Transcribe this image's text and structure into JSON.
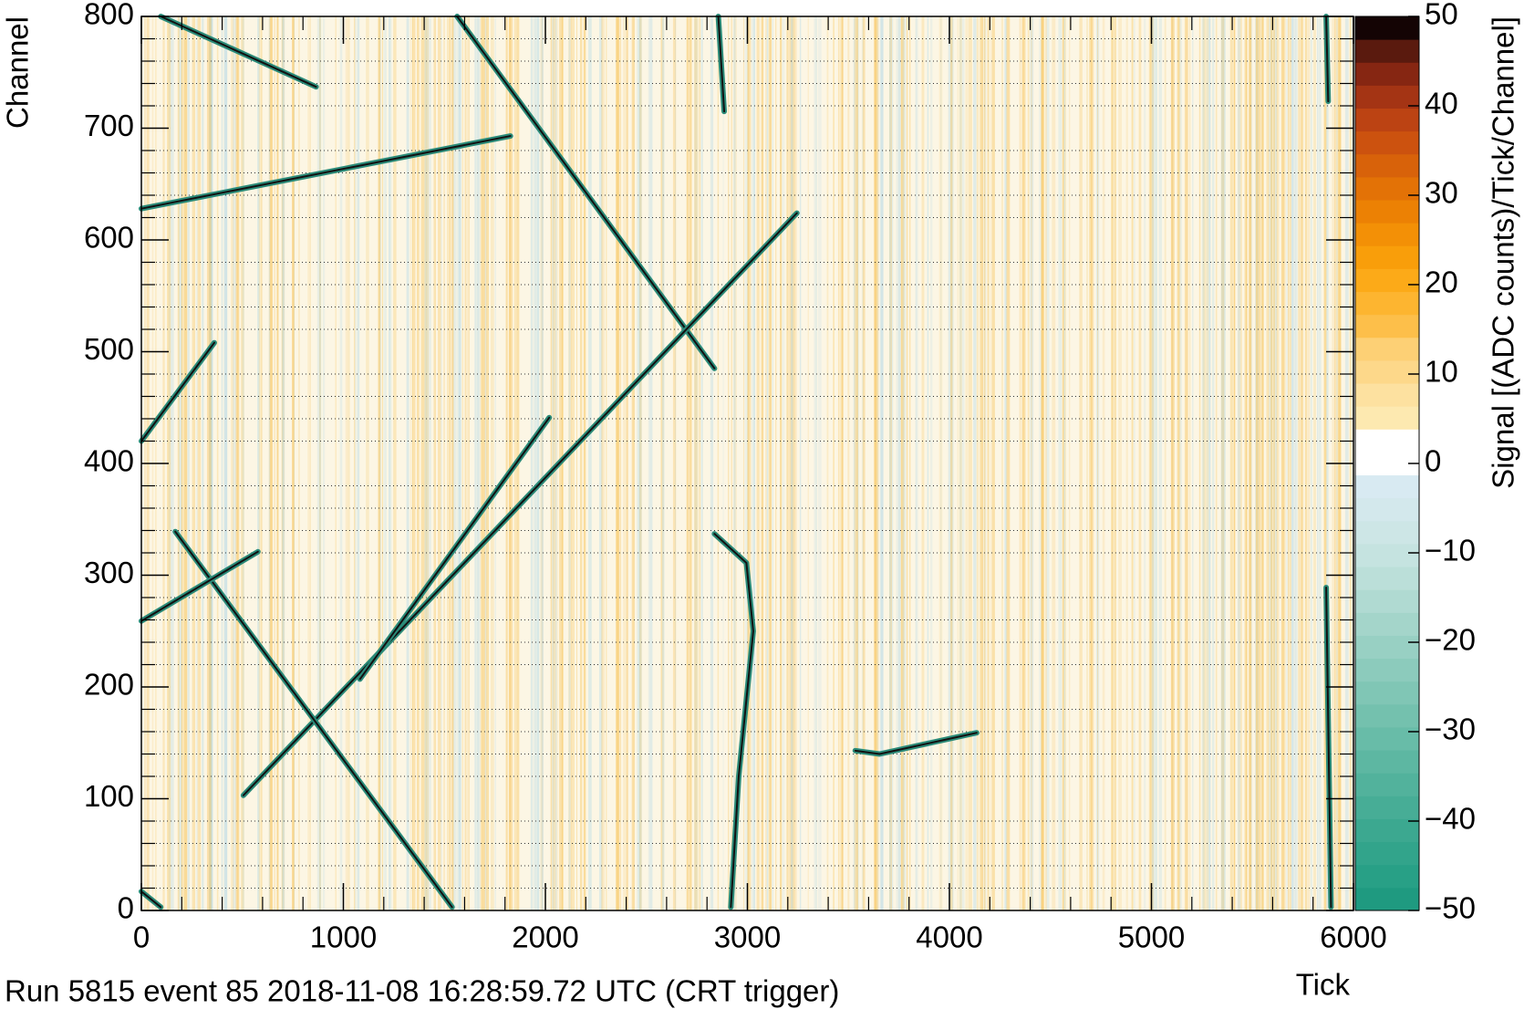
{
  "chart_data": {
    "type": "heatmap",
    "xlabel": "Tick",
    "ylabel": "Channel",
    "zlabel": "Signal [(ADC counts)/Tick/Channel]",
    "footer": "Run 5815 event 85 2018-11-08 16:28:59.72 UTC (CRT trigger)",
    "xlim": [
      0,
      6000
    ],
    "ylim": [
      0,
      800
    ],
    "zlim": [
      -50,
      50
    ],
    "xticks": [
      0,
      1000,
      2000,
      3000,
      4000,
      5000,
      6000
    ],
    "yticks": [
      0,
      100,
      200,
      300,
      400,
      500,
      600,
      700,
      800
    ],
    "yminorticks": [
      20,
      40,
      60,
      80,
      120,
      140,
      160,
      180,
      220,
      240,
      260,
      280,
      320,
      340,
      360,
      380,
      420,
      440,
      460,
      480,
      520,
      540,
      560,
      580,
      620,
      640,
      660,
      680,
      720,
      740,
      760,
      780
    ],
    "xminorticks": [
      200,
      400,
      600,
      800,
      1200,
      1400,
      1600,
      1800,
      2200,
      2400,
      2600,
      2800,
      3200,
      3400,
      3600,
      3800,
      4200,
      4400,
      4600,
      4800,
      5200,
      5400,
      5600,
      5800
    ],
    "zticks": [
      {
        "value": -50,
        "label": "−50"
      },
      {
        "value": -40,
        "label": "−40"
      },
      {
        "value": -30,
        "label": "−30"
      },
      {
        "value": -20,
        "label": "−20"
      },
      {
        "value": -10,
        "label": "−10"
      },
      0,
      10,
      20,
      30,
      40,
      50
    ],
    "grid": true,
    "colorscale": [
      "#1f9a80",
      "#28a086",
      "#32a48b",
      "#3ca890",
      "#47ad96",
      "#52b29c",
      "#5db7a2",
      "#68bca8",
      "#74c1ae",
      "#80c6b5",
      "#8ccbbc",
      "#98d0c3",
      "#a4d5ca",
      "#b0dad2",
      "#bbdfd9",
      "#c5e3e0",
      "#cde6e6",
      "#d3e8ec",
      "#d8eaf2",
      "#ffffff",
      "#ffffff",
      "#fde9b0",
      "#fde1a0",
      "#fdd88a",
      "#fdd075",
      "#fdbf4a",
      "#fdb530",
      "#fcaa18",
      "#f99e0a",
      "#f39006",
      "#ec8104",
      "#e37206",
      "#d8620a",
      "#cc520f",
      "#bc4313",
      "#a43414",
      "#862612",
      "#5a1a0e",
      "#140404"
    ],
    "track_color": "#2a8a78",
    "tracks": [
      {
        "x": [
          96,
          865
        ],
        "y": [
          800,
          737
        ]
      },
      {
        "x": [
          1563,
          2837
        ],
        "y": [
          800,
          485
        ]
      },
      {
        "x": [
          0,
          1827
        ],
        "y": [
          628,
          693
        ]
      },
      {
        "x": [
          505,
          3245
        ],
        "y": [
          103,
          624
        ]
      },
      {
        "x": [
          0,
          361
        ],
        "y": [
          420,
          508
        ]
      },
      {
        "x": [
          1082,
          2019
        ],
        "y": [
          207,
          441
        ]
      },
      {
        "x": [
          168,
          1538
        ],
        "y": [
          339,
          3
        ]
      },
      {
        "x": [
          0,
          577
        ],
        "y": [
          259,
          321
        ]
      },
      {
        "x": [
          2837,
          2995,
          3029,
          2957,
          2918
        ],
        "y": [
          337,
          311,
          250,
          120,
          3
        ]
      },
      {
        "x": [
          2856,
          2885
        ],
        "y": [
          800,
          715
        ]
      },
      {
        "x": [
          5865,
          5875
        ],
        "y": [
          800,
          724
        ]
      },
      {
        "x": [
          5865,
          5889
        ],
        "y": [
          289,
          3
        ]
      },
      {
        "x": [
          3534,
          3654,
          4135
        ],
        "y": [
          143,
          140,
          159
        ]
      },
      {
        "x": [
          0,
          96
        ],
        "y": [
          17,
          3
        ]
      }
    ]
  }
}
